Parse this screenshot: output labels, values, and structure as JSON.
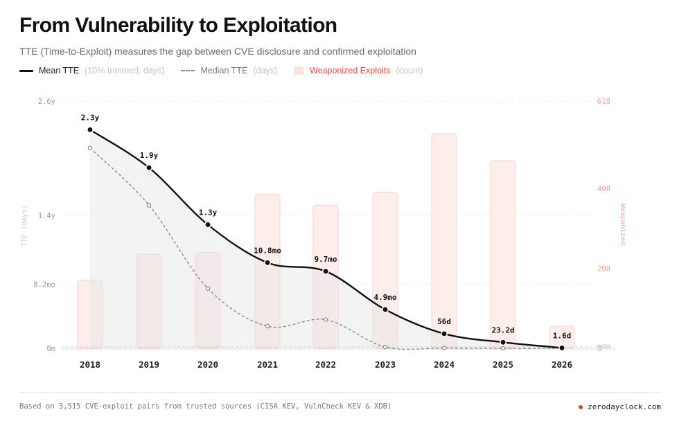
{
  "header": {
    "title": "From Vulnerability to Exploitation",
    "subtitle": "TTE (Time-to-Exploit) measures the gap between CVE disclosure and confirmed exploitation"
  },
  "legend": [
    {
      "name": "Mean TTE",
      "unit": "(10% trimmed, days)"
    },
    {
      "name": "Median TTE",
      "unit": "(days)"
    },
    {
      "name": "Weaponized Exploits",
      "unit": "(count)"
    }
  ],
  "chart_data": {
    "type": "line",
    "categories": [
      "2018",
      "2019",
      "2020",
      "2021",
      "2022",
      "2023",
      "2024",
      "2025",
      "2026"
    ],
    "y_left": {
      "label": "TTE (days)",
      "ticks": [
        "0m",
        "8.2mo",
        "1.4y",
        "2.6y"
      ],
      "range_days": [
        0,
        950
      ]
    },
    "y_right": {
      "label": "Weaponized",
      "ticks": [
        "0",
        "200",
        "400",
        "618"
      ],
      "range": [
        0,
        618
      ],
      "baseline_label": "KNEW"
    },
    "series": [
      {
        "name": "Mean TTE",
        "values_days": [
          840,
          694,
          475,
          329,
          296,
          149,
          56,
          23.2,
          1.6
        ],
        "labels": [
          "2.3y",
          "1.9y",
          "1.3y",
          "10.8mo",
          "9.7mo",
          "4.9mo",
          "56d",
          "23.2d",
          "1.6d"
        ]
      },
      {
        "name": "Median TTE",
        "values_days": [
          770,
          550,
          230,
          85,
          110,
          5,
          1,
          0,
          0
        ]
      },
      {
        "name": "Weaponized Exploits",
        "values": [
          170,
          235,
          240,
          385,
          358,
          390,
          537,
          469,
          55
        ]
      }
    ],
    "colors": {
      "mean": "#111111",
      "median": "#8a8a8a",
      "bars_fill": "#fdeeec",
      "bars_stroke": "#f6d3cf",
      "right_axis": "#f0a59c"
    },
    "grid": true
  },
  "footer": {
    "note": "Based on 3,515 CVE-exploit pairs from trusted sources (CISA KEV, VulnCheck KEV & XDB)",
    "brand": "zerodayclock.com"
  }
}
